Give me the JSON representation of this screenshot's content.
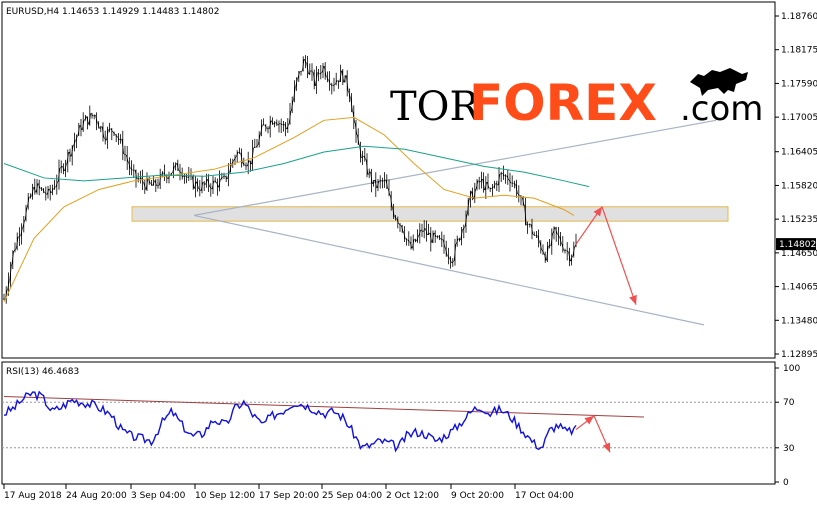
{
  "colors": {
    "candle": "#000000",
    "ma_fast": "#e0a020",
    "ma_slow": "#1aa08a",
    "rsi": "#1010e0",
    "channel": "#a8b4c4",
    "zone_fill": "#e0e0e0",
    "zone_border": "#e8b84a",
    "arrow": "#f05050",
    "rsi_trend": "#a04040",
    "logo_accent": "#ff4d1a"
  },
  "chart_data": [
    {
      "type": "candlestick",
      "header": "EURUSD,H4  1.14653 1.14929 1.14483 1.14802",
      "symbol": "EURUSD",
      "timeframe": "H4",
      "last_price": "1.14802",
      "ylim": [
        1.12895,
        1.1876
      ],
      "y_ticks": [
        "1.18760",
        "1.18175",
        "1.17590",
        "1.17005",
        "1.16405",
        "1.15820",
        "1.15235",
        "1.14650",
        "1.14065",
        "1.13480",
        "1.12895"
      ],
      "x_ticks": [
        "17 Aug 2018",
        "24 Aug 20:00",
        "3 Sep 04:00",
        "10 Sep 12:00",
        "17 Sep 20:00",
        "25 Sep 04:00",
        "2 Oct 12:00",
        "9 Oct 20:00",
        "17 Oct 04:00"
      ],
      "close_path": [
        [
          0,
          1.1385
        ],
        [
          8,
          1.146
        ],
        [
          18,
          1.152
        ],
        [
          30,
          1.158
        ],
        [
          45,
          1.1565
        ],
        [
          60,
          1.162
        ],
        [
          78,
          1.169
        ],
        [
          90,
          1.1705
        ],
        [
          100,
          1.167
        ],
        [
          110,
          1.168
        ],
        [
          120,
          1.164
        ],
        [
          128,
          1.16
        ],
        [
          140,
          1.1585
        ],
        [
          150,
          1.158
        ],
        [
          160,
          1.16
        ],
        [
          175,
          1.1615
        ],
        [
          185,
          1.159
        ],
        [
          195,
          1.158
        ],
        [
          210,
          1.1585
        ],
        [
          220,
          1.159
        ],
        [
          232,
          1.164
        ],
        [
          245,
          1.162
        ],
        [
          258,
          1.168
        ],
        [
          270,
          1.17
        ],
        [
          282,
          1.168
        ],
        [
          292,
          1.176
        ],
        [
          300,
          1.18
        ],
        [
          310,
          1.176
        ],
        [
          318,
          1.179
        ],
        [
          328,
          1.176
        ],
        [
          338,
          1.1775
        ],
        [
          346,
          1.174
        ],
        [
          352,
          1.166
        ],
        [
          360,
          1.162
        ],
        [
          370,
          1.158
        ],
        [
          380,
          1.159
        ],
        [
          388,
          1.154
        ],
        [
          398,
          1.151
        ],
        [
          406,
          1.147
        ],
        [
          418,
          1.1505
        ],
        [
          428,
          1.149
        ],
        [
          438,
          1.148
        ],
        [
          448,
          1.1455
        ],
        [
          458,
          1.151
        ],
        [
          466,
          1.156
        ],
        [
          476,
          1.159
        ],
        [
          486,
          1.157
        ],
        [
          496,
          1.16
        ],
        [
          506,
          1.1595
        ],
        [
          514,
          1.157
        ],
        [
          522,
          1.152
        ],
        [
          532,
          1.149
        ],
        [
          542,
          1.146
        ],
        [
          550,
          1.15
        ],
        [
          558,
          1.148
        ],
        [
          566,
          1.146
        ],
        [
          572,
          1.148
        ]
      ],
      "ma_fast_path": [
        [
          0,
          1.138
        ],
        [
          30,
          1.149
        ],
        [
          60,
          1.1545
        ],
        [
          95,
          1.1575
        ],
        [
          130,
          1.159
        ],
        [
          170,
          1.16
        ],
        [
          210,
          1.161
        ],
        [
          250,
          1.163
        ],
        [
          290,
          1.1665
        ],
        [
          320,
          1.1695
        ],
        [
          350,
          1.17
        ],
        [
          380,
          1.167
        ],
        [
          410,
          1.162
        ],
        [
          440,
          1.1575
        ],
        [
          470,
          1.156
        ],
        [
          500,
          1.1565
        ],
        [
          530,
          1.156
        ],
        [
          560,
          1.154
        ],
        [
          570,
          1.153
        ]
      ],
      "ma_slow_path": [
        [
          0,
          1.162
        ],
        [
          40,
          1.1595
        ],
        [
          80,
          1.159
        ],
        [
          120,
          1.1595
        ],
        [
          160,
          1.16
        ],
        [
          200,
          1.1598
        ],
        [
          240,
          1.1605
        ],
        [
          280,
          1.162
        ],
        [
          320,
          1.164
        ],
        [
          360,
          1.165
        ],
        [
          400,
          1.1645
        ],
        [
          440,
          1.163
        ],
        [
          480,
          1.1615
        ],
        [
          520,
          1.1605
        ],
        [
          560,
          1.159
        ],
        [
          585,
          1.158
        ]
      ],
      "trend_upper": [
        [
          190,
          1.153
        ],
        [
          712,
          1.1695
        ]
      ],
      "trend_lower": [
        [
          190,
          1.153
        ],
        [
          700,
          1.134
        ]
      ],
      "zone": [
        1.152,
        1.1545
      ],
      "projection": [
        [
          572,
          1.148
        ],
        [
          598,
          1.1545
        ],
        [
          632,
          1.1375
        ]
      ]
    },
    {
      "type": "line",
      "label": "RSI(13) 46.4683",
      "ylim": [
        0,
        100
      ],
      "y_ticks": [
        "100",
        "70",
        "30",
        "0"
      ],
      "levels": [
        70,
        30
      ],
      "path": [
        [
          0,
          60
        ],
        [
          10,
          65
        ],
        [
          18,
          72
        ],
        [
          28,
          78
        ],
        [
          38,
          75
        ],
        [
          48,
          62
        ],
        [
          58,
          66
        ],
        [
          68,
          72
        ],
        [
          78,
          70
        ],
        [
          88,
          68
        ],
        [
          98,
          64
        ],
        [
          108,
          58
        ],
        [
          118,
          45
        ],
        [
          128,
          40
        ],
        [
          138,
          38
        ],
        [
          148,
          36
        ],
        [
          158,
          52
        ],
        [
          168,
          62
        ],
        [
          178,
          50
        ],
        [
          188,
          40
        ],
        [
          198,
          42
        ],
        [
          210,
          55
        ],
        [
          222,
          50
        ],
        [
          232,
          66
        ],
        [
          240,
          70
        ],
        [
          248,
          60
        ],
        [
          258,
          50
        ],
        [
          268,
          58
        ],
        [
          278,
          62
        ],
        [
          290,
          70
        ],
        [
          300,
          68
        ],
        [
          310,
          64
        ],
        [
          320,
          60
        ],
        [
          330,
          62
        ],
        [
          340,
          56
        ],
        [
          350,
          42
        ],
        [
          358,
          30
        ],
        [
          366,
          32
        ],
        [
          376,
          36
        ],
        [
          386,
          34
        ],
        [
          394,
          30
        ],
        [
          402,
          40
        ],
        [
          412,
          44
        ],
        [
          422,
          42
        ],
        [
          432,
          36
        ],
        [
          440,
          40
        ],
        [
          450,
          46
        ],
        [
          460,
          55
        ],
        [
          470,
          64
        ],
        [
          478,
          66
        ],
        [
          486,
          60
        ],
        [
          496,
          64
        ],
        [
          506,
          58
        ],
        [
          514,
          50
        ],
        [
          522,
          42
        ],
        [
          530,
          34
        ],
        [
          538,
          30
        ],
        [
          546,
          46
        ],
        [
          554,
          50
        ],
        [
          562,
          44
        ],
        [
          572,
          46
        ]
      ],
      "trend": [
        [
          0,
          75
        ],
        [
          640,
          57
        ]
      ],
      "projection": [
        [
          572,
          46
        ],
        [
          590,
          58
        ],
        [
          606,
          26
        ]
      ]
    }
  ],
  "logo": {
    "part1": "TOR",
    "part2": "FOREX",
    "part3": ".com"
  }
}
